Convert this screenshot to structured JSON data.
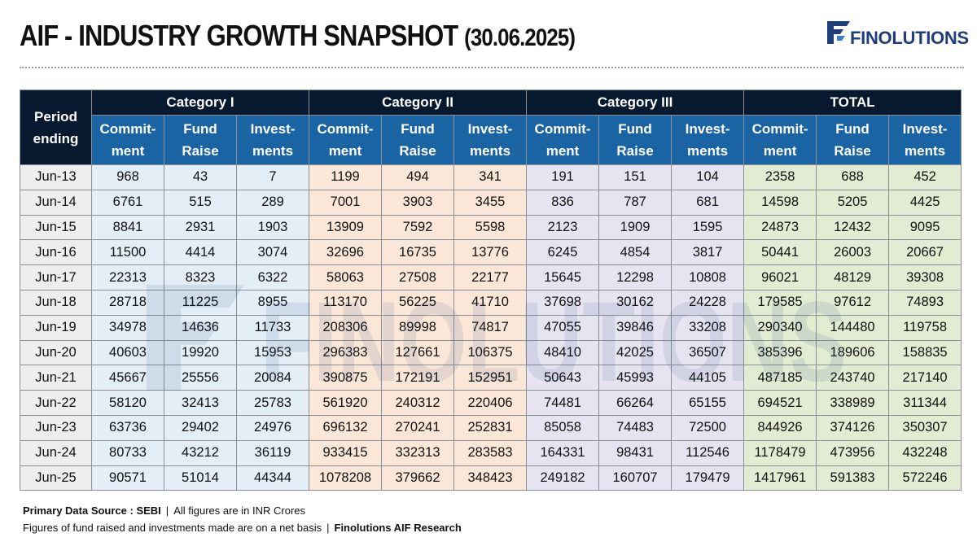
{
  "header": {
    "title": "AIF - INDUSTRY GROWTH SNAPSHOT",
    "date": "(30.06.2025)",
    "logo_text": "FINOLUTIONS"
  },
  "watermark": "FINOLUTIONS",
  "table": {
    "period_header": [
      "Period",
      "ending"
    ],
    "categories": [
      "Category I",
      "Category II",
      "Category III",
      "TOTAL"
    ],
    "subheaders": [
      [
        "Commit-",
        "ment"
      ],
      [
        "Fund",
        "Raise"
      ],
      [
        "Invest-",
        "ments"
      ]
    ],
    "rows": [
      [
        "Jun-13",
        "968",
        "43",
        "7",
        "1199",
        "494",
        "341",
        "191",
        "151",
        "104",
        "2358",
        "688",
        "452"
      ],
      [
        "Jun-14",
        "6761",
        "515",
        "289",
        "7001",
        "3903",
        "3455",
        "836",
        "787",
        "681",
        "14598",
        "5205",
        "4425"
      ],
      [
        "Jun-15",
        "8841",
        "2931",
        "1903",
        "13909",
        "7592",
        "5598",
        "2123",
        "1909",
        "1595",
        "24873",
        "12432",
        "9095"
      ],
      [
        "Jun-16",
        "11500",
        "4414",
        "3074",
        "32696",
        "16735",
        "13776",
        "6245",
        "4854",
        "3817",
        "50441",
        "26003",
        "20667"
      ],
      [
        "Jun-17",
        "22313",
        "8323",
        "6322",
        "58063",
        "27508",
        "22177",
        "15645",
        "12298",
        "10808",
        "96021",
        "48129",
        "39308"
      ],
      [
        "Jun-18",
        "28718",
        "11225",
        "8955",
        "113170",
        "56225",
        "41710",
        "37698",
        "30162",
        "24228",
        "179585",
        "97612",
        "74893"
      ],
      [
        "Jun-19",
        "34978",
        "14636",
        "11733",
        "208306",
        "89998",
        "74817",
        "47055",
        "39846",
        "33208",
        "290340",
        "144480",
        "119758"
      ],
      [
        "Jun-20",
        "40603",
        "19920",
        "15953",
        "296383",
        "127661",
        "106375",
        "48410",
        "42025",
        "36507",
        "385396",
        "189606",
        "158835"
      ],
      [
        "Jun-21",
        "45667",
        "25556",
        "20084",
        "390875",
        "172191",
        "152951",
        "50643",
        "45993",
        "44105",
        "487185",
        "243740",
        "217140"
      ],
      [
        "Jun-22",
        "58120",
        "32413",
        "25783",
        "561920",
        "240312",
        "220406",
        "74481",
        "66264",
        "65155",
        "694521",
        "338989",
        "311344"
      ],
      [
        "Jun-23",
        "63736",
        "29402",
        "24976",
        "696132",
        "270241",
        "252831",
        "85058",
        "74483",
        "72500",
        "844926",
        "374126",
        "350307"
      ],
      [
        "Jun-24",
        "80733",
        "43212",
        "36119",
        "933415",
        "332313",
        "283583",
        "164331",
        "98431",
        "112546",
        "1178479",
        "473956",
        "432248"
      ],
      [
        "Jun-25",
        "90571",
        "51014",
        "44344",
        "1078208",
        "379662",
        "348423",
        "249182",
        "160707",
        "179479",
        "1417961",
        "591383",
        "572246"
      ]
    ]
  },
  "footer": {
    "source_label": "Primary Data Source : SEBI",
    "units_note": "All figures are in INR Crores",
    "basis_note": "Figures of fund raised and investments made are on a net basis",
    "research_label": "Finolutions AIF Research"
  },
  "colors": {
    "header_dark": "#06192e",
    "header_blue": "#1a64a4",
    "cat1": "#e3eef7",
    "cat2": "#fbe7d7",
    "cat3": "#e6e4f0",
    "total": "#e1ecd2",
    "logo": "#1f3f7a"
  },
  "icons": {
    "logo": "finolutions-logo-icon"
  }
}
